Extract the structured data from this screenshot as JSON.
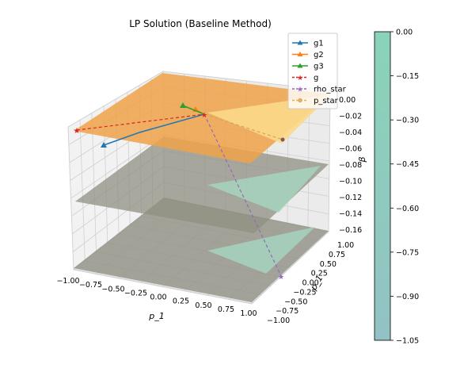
{
  "chart_data": {
    "type": "3d-surface-line",
    "title": "LP Solution (Baseline Method)",
    "axes": {
      "x": {
        "label": "p_1",
        "ticks": [
          "−1.00",
          "−0.75",
          "−0.50",
          "−0.25",
          "0.00",
          "0.25",
          "0.50",
          "0.75",
          "1.00"
        ],
        "range": [
          -1,
          1
        ]
      },
      "y": {
        "label": "p_1",
        "ticks": [
          "−1.00",
          "−0.75",
          "−0.50",
          "−0.25",
          "0.00",
          "0.25",
          "0.50",
          "0.75",
          "1.00"
        ],
        "range": [
          -1,
          1
        ]
      },
      "z": {
        "label": "β",
        "ticks": [
          "0.00",
          "−0.02",
          "−0.04",
          "−0.06",
          "−0.08",
          "−0.10",
          "−0.12",
          "−0.14",
          "−0.16"
        ],
        "range": [
          -0.16,
          0
        ]
      }
    },
    "legend": {
      "placement": "top-right",
      "entries": [
        {
          "label": "g1",
          "color": "#1f77b4",
          "style": "solid",
          "marker": "triangle"
        },
        {
          "label": "g2",
          "color": "#ff7f0e",
          "style": "solid",
          "marker": "triangle"
        },
        {
          "label": "g3",
          "color": "#2ca02c",
          "style": "solid",
          "marker": "triangle"
        },
        {
          "label": "g",
          "color": "#d62728",
          "style": "dashed",
          "marker": "star"
        },
        {
          "label": "rho_star",
          "color": "#9467bd",
          "style": "dashed",
          "marker": "star"
        },
        {
          "label": "p_star",
          "color": "#e0b060",
          "style": "dashed",
          "marker": "pentagon"
        }
      ]
    },
    "colorbar": {
      "ticks": [
        "0.00",
        "−0.15",
        "−0.30",
        "−0.45",
        "−0.60",
        "−0.75",
        "−0.90",
        "−1.05"
      ],
      "range": [
        -1.05,
        0
      ],
      "color_top": "#8ad3b8",
      "color_bottom": "#93c2c4"
    },
    "grid": true
  }
}
